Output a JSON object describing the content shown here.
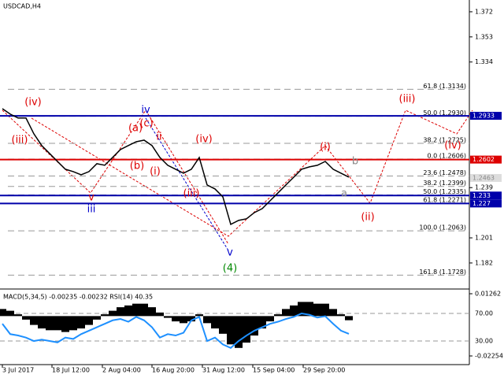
{
  "chart_data": {
    "type": "line",
    "title": "USDCAD,H4",
    "values": [
      1.2987,
      1.2946,
      1.2916,
      1.2916,
      1.2797,
      1.2708,
      1.2648,
      1.2588,
      1.2529,
      1.2511,
      1.2487,
      1.2511,
      1.2571,
      1.2559,
      1.2618,
      1.2678,
      1.2708,
      1.2737,
      1.2749,
      1.2708,
      1.2618,
      1.2559,
      1.2529,
      1.2499,
      1.2529,
      1.2618,
      1.241,
      1.238,
      1.232,
      1.2112,
      1.2142,
      1.2154,
      1.2201,
      1.2231,
      1.2291,
      1.235,
      1.241,
      1.2469,
      1.2529,
      1.2547,
      1.2559,
      1.2588,
      1.2529,
      1.2499,
      1.2469
    ],
    "color": "#000000",
    "ylim": [
      1.1629,
      1.3809
    ],
    "yticks": [
      1.372,
      1.353,
      1.334,
      1.239,
      1.201,
      1.182
    ],
    "levels": [
      {
        "value": 1.2933,
        "color": "#0000aa"
      },
      {
        "value": 1.2602,
        "color": "#dd0000"
      },
      {
        "value": 1.233,
        "color": "#0000aa"
      },
      {
        "value": 1.227,
        "color": "#0000aa"
      }
    ],
    "current_price": 1.2463,
    "fib_levels": [
      {
        "label": "61.8 (1.3134)",
        "value": 1.3134
      },
      {
        "label": "50.0 (1.2930)",
        "value": 1.293
      },
      {
        "label": "38.2 (1.2725)",
        "value": 1.2725
      },
      {
        "label": "0.0 (1.2606)",
        "value": 1.2606
      },
      {
        "label": "23.6 (1.2478)",
        "value": 1.2478
      },
      {
        "label": "38.2 (1.2399)",
        "value": 1.2399
      },
      {
        "label": "50.0 (1.2335)",
        "value": 1.2335
      },
      {
        "label": "61.8 (1.2271)",
        "value": 1.2271
      },
      {
        "label": "100.0 (1.2063)",
        "value": 1.2063
      },
      {
        "label": "161.8 (1.1728)",
        "value": 1.1728
      }
    ],
    "annotations": [
      {
        "text": "(iv)",
        "color": "#dd0000"
      },
      {
        "text": "(iii)",
        "color": "#dd0000"
      },
      {
        "text": "iv",
        "color": "#0000cc"
      },
      {
        "text": "(a)",
        "color": "#dd0000"
      },
      {
        "text": "(c)",
        "color": "#dd0000"
      },
      {
        "text": "ii",
        "color": "#dd0000"
      },
      {
        "text": "(b)",
        "color": "#dd0000"
      },
      {
        "text": "(i)",
        "color": "#dd0000"
      },
      {
        "text": "(iv)",
        "color": "#dd0000"
      },
      {
        "text": "(iii)",
        "color": "#dd0000"
      },
      {
        "text": "v",
        "color": "#dd0000"
      },
      {
        "text": "iii",
        "color": "#0000cc"
      },
      {
        "text": "(i)",
        "color": "#dd0000"
      },
      {
        "text": "b",
        "color": "#888888"
      },
      {
        "text": "a",
        "color": "#888888"
      },
      {
        "text": "(ii)",
        "color": "#dd0000"
      },
      {
        "text": "(iii)",
        "color": "#dd0000"
      },
      {
        "text": "(iv)",
        "color": "#dd0000"
      },
      {
        "text": "v",
        "color": "#0000cc"
      },
      {
        "text": "(4)",
        "color": "#008800"
      }
    ],
    "time_labels": [
      "3 Jul 2017",
      "18 Jul 12:00",
      "2 Aug 04:00",
      "16 Aug 20:00",
      "31 Aug 12:00",
      "15 Sep 04:00",
      "29 Sep 20:00"
    ],
    "indicator": {
      "label": "MACD(5,34,5) -0.00235 -0.00232 RSI(14) 40.35",
      "macd": [
        0.004,
        0.003,
        0.001,
        -0.002,
        -0.005,
        -0.007,
        -0.008,
        -0.008,
        -0.009,
        -0.008,
        -0.007,
        -0.005,
        -0.002,
        0.001,
        0.003,
        0.005,
        0.006,
        0.007,
        0.007,
        0.005,
        0.002,
        -0.001,
        -0.003,
        -0.004,
        -0.003,
        0.001,
        -0.004,
        -0.007,
        -0.01,
        -0.016,
        -0.018,
        -0.015,
        -0.011,
        -0.007,
        -0.003,
        0.001,
        0.004,
        0.006,
        0.008,
        0.008,
        0.007,
        0.007,
        0.004,
        0.001,
        -0.00235
      ],
      "macd_color": "#000000",
      "macd_ylim": [
        -0.02699,
        0.01485
      ],
      "macd_yticks": [
        0.01262,
        -0.02254
      ],
      "rsi": [
        55,
        40,
        38,
        35,
        30,
        32,
        30,
        28,
        35,
        33,
        40,
        45,
        50,
        55,
        60,
        62,
        58,
        65,
        60,
        50,
        35,
        40,
        38,
        42,
        60,
        65,
        30,
        35,
        25,
        20,
        30,
        38,
        45,
        50,
        55,
        58,
        62,
        65,
        70,
        68,
        64,
        66,
        55,
        45,
        40.35
      ],
      "rsi_color": "#1e90ff",
      "rsi_ylim": [
        -3.1,
        104.3
      ],
      "rsi_yticks": [
        {
          "value": 70,
          "label": "70.00"
        },
        {
          "value": 30,
          "label": "30.00"
        }
      ]
    }
  }
}
